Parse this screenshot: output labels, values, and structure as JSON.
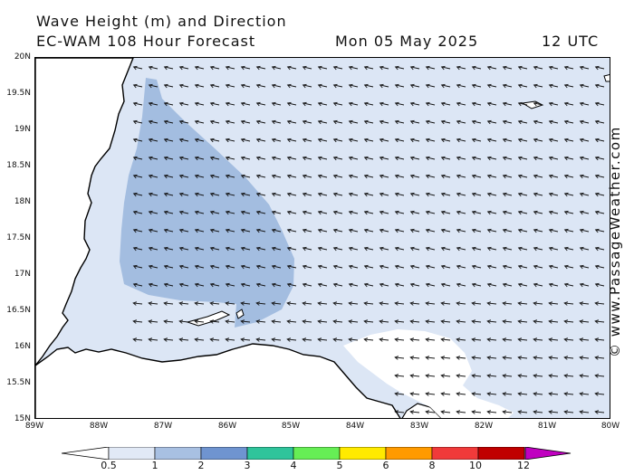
{
  "header": {
    "line1": "Wave Height (m) and Direction",
    "line2_left": "EC-WAM 108 Hour Forecast",
    "line2_date": "Mon 05 May 2025",
    "line2_time": "12 UTC"
  },
  "watermark": "© www.PassageWeather.com",
  "axes": {
    "lat_labels": [
      "20N",
      "19.5N",
      "19N",
      "18.5N",
      "18N",
      "17.5N",
      "17N",
      "16.5N",
      "16N",
      "15.5N",
      "15N"
    ],
    "lon_labels": [
      "89W",
      "88W",
      "87W",
      "86W",
      "85W",
      "84W",
      "83W",
      "82W",
      "81W",
      "80W"
    ]
  },
  "colorbar": {
    "labels": [
      "0.5",
      "1",
      "2",
      "3",
      "4",
      "5",
      "6",
      "8",
      "10",
      "12"
    ],
    "colors": [
      "#e1e9f6",
      "#a8c0e2",
      "#6f94d0",
      "#2fc49b",
      "#66ee55",
      "#ffea00",
      "#ff9a00",
      "#f03a3a",
      "#c00000",
      "#c000c0"
    ]
  },
  "map": {
    "sea_color": "#dce6f5",
    "high_wave_color": "#a3bde0",
    "land_color": "#ffffff",
    "wave_direction": "from the east (arrows pointing west / north-west)"
  }
}
